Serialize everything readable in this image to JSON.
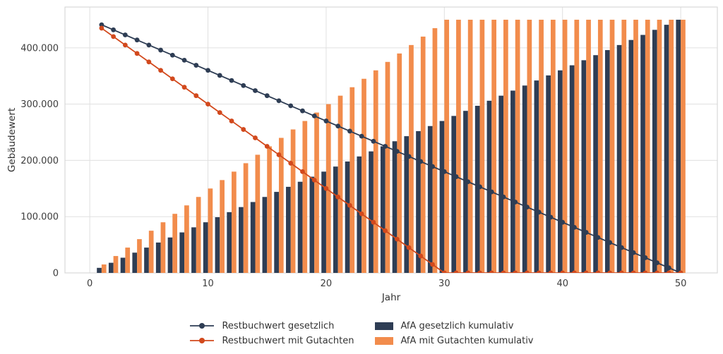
{
  "page": {
    "background": "#ffffff"
  },
  "chart_data": {
    "type": "bar+line",
    "title": "",
    "xlabel": "Jahr",
    "ylabel": "Gebäudewert",
    "grid": true,
    "legend_position": "bottom",
    "xlim": [
      -2.1,
      53.1
    ],
    "ylim": [
      0,
      472500
    ],
    "xticks": [
      {
        "v": 0,
        "label": "0"
      },
      {
        "v": 10,
        "label": "10"
      },
      {
        "v": 20,
        "label": "20"
      },
      {
        "v": 30,
        "label": "30"
      },
      {
        "v": 40,
        "label": "40"
      },
      {
        "v": 50,
        "label": "50"
      }
    ],
    "yticks": [
      {
        "v": 0,
        "label": "0"
      },
      {
        "v": 100000,
        "label": "100.000"
      },
      {
        "v": 200000,
        "label": "200.000"
      },
      {
        "v": 300000,
        "label": "300.000"
      },
      {
        "v": 400000,
        "label": "400.000"
      }
    ],
    "colors": {
      "navy": "#2e3d54",
      "red": "#d2491d",
      "orange": "#f28c4c",
      "grid": "#e0e0e0",
      "spine": "#d8d8d8",
      "tick_text": "#3d3d3d",
      "label_text": "#333333"
    },
    "x": [
      1,
      2,
      3,
      4,
      5,
      6,
      7,
      8,
      9,
      10,
      11,
      12,
      13,
      14,
      15,
      16,
      17,
      18,
      19,
      20,
      21,
      22,
      23,
      24,
      25,
      26,
      27,
      28,
      29,
      30,
      31,
      32,
      33,
      34,
      35,
      36,
      37,
      38,
      39,
      40,
      41,
      42,
      43,
      44,
      45,
      46,
      47,
      48,
      49,
      50
    ],
    "series": [
      {
        "name": "Restbuchwert gesetzlich",
        "type": "line",
        "color": "#2e3d54",
        "values": [
          441000,
          432000,
          423000,
          414000,
          405000,
          396000,
          387000,
          378000,
          369000,
          360000,
          351000,
          342000,
          333000,
          324000,
          315000,
          306000,
          297000,
          288000,
          279000,
          270000,
          261000,
          252000,
          243000,
          234000,
          225000,
          216000,
          207000,
          198000,
          189000,
          180000,
          171000,
          162000,
          153000,
          144000,
          135000,
          126000,
          117000,
          108000,
          99000,
          90000,
          81000,
          72000,
          63000,
          54000,
          45000,
          36000,
          27000,
          18000,
          9000,
          0
        ]
      },
      {
        "name": "Restbuchwert mit Gutachten",
        "type": "line",
        "color": "#d2491d",
        "values": [
          435000,
          420000,
          405000,
          390000,
          375000,
          360000,
          345000,
          330000,
          315000,
          300000,
          285000,
          270000,
          255000,
          240000,
          225000,
          210000,
          195000,
          180000,
          165000,
          150000,
          135000,
          120000,
          105000,
          90000,
          75000,
          60000,
          45000,
          30000,
          15000,
          0,
          0,
          0,
          0,
          0,
          0,
          0,
          0,
          0,
          0,
          0,
          0,
          0,
          0,
          0,
          0,
          0,
          0,
          0,
          0,
          0
        ]
      },
      {
        "name": "AfA gesetzlich kumulativ",
        "type": "bar",
        "color": "#2e3d54",
        "offset": -0.4,
        "values": [
          9000,
          18000,
          27000,
          36000,
          45000,
          54000,
          63000,
          72000,
          81000,
          90000,
          99000,
          108000,
          117000,
          126000,
          135000,
          144000,
          153000,
          162000,
          171000,
          180000,
          189000,
          198000,
          207000,
          216000,
          225000,
          234000,
          243000,
          252000,
          261000,
          270000,
          279000,
          288000,
          297000,
          306000,
          315000,
          324000,
          333000,
          342000,
          351000,
          360000,
          369000,
          378000,
          387000,
          396000,
          405000,
          414000,
          423000,
          432000,
          441000,
          450000
        ]
      },
      {
        "name": "AfA mit Gutachten kumulativ",
        "type": "bar",
        "color": "#f28c4c",
        "offset": 0,
        "values": [
          15000,
          30000,
          45000,
          60000,
          75000,
          90000,
          105000,
          120000,
          135000,
          150000,
          165000,
          180000,
          195000,
          210000,
          225000,
          240000,
          255000,
          270000,
          285000,
          300000,
          315000,
          330000,
          345000,
          360000,
          375000,
          390000,
          405000,
          420000,
          435000,
          450000,
          450000,
          450000,
          450000,
          450000,
          450000,
          450000,
          450000,
          450000,
          450000,
          450000,
          450000,
          450000,
          450000,
          450000,
          450000,
          450000,
          450000,
          450000,
          450000,
          450000
        ]
      }
    ]
  }
}
